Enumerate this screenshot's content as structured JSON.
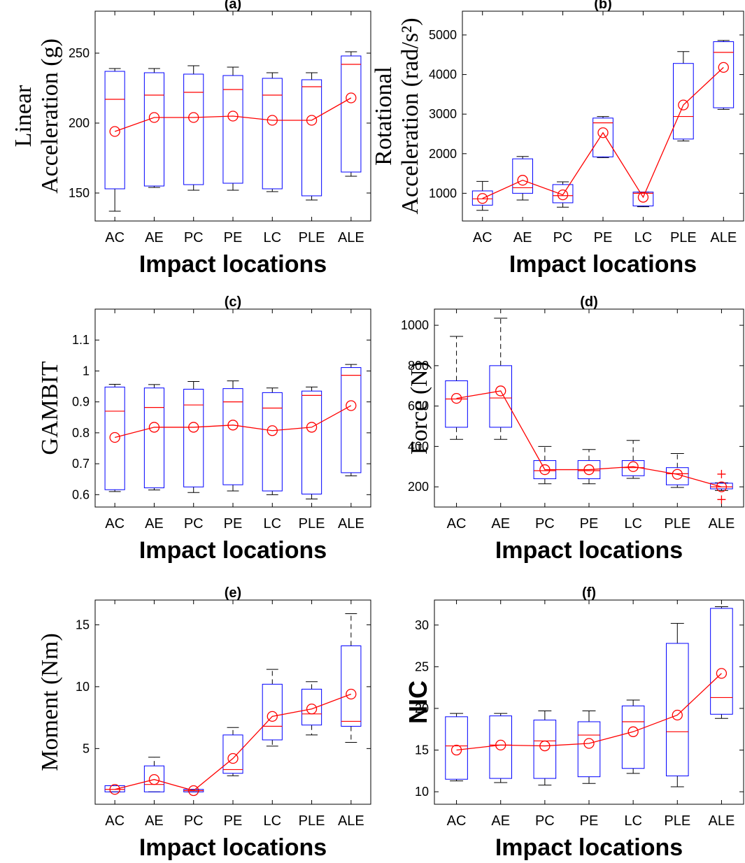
{
  "colors": {
    "box": "#0000ff",
    "median": "#ff0000",
    "mean": "#ff0000",
    "whisker": "#000000",
    "axis": "#000000",
    "outlier": "#ff0000"
  },
  "chart_data": [
    {
      "type": "box",
      "title": "(a)",
      "ylabel_lines": [
        "Linear",
        "Acceleration (g)"
      ],
      "ylabel_style": "serif",
      "xlabel": "Impact locations",
      "categories": [
        "AC",
        "AE",
        "PC",
        "PE",
        "LC",
        "PLE",
        "ALE"
      ],
      "ylim": [
        130,
        280
      ],
      "yticks": [
        150,
        200,
        250
      ],
      "whisker_low": [
        137,
        154,
        152,
        152,
        151,
        145,
        162
      ],
      "q1": [
        153,
        155,
        156,
        157,
        153,
        148,
        165
      ],
      "median": [
        217,
        220,
        222,
        224,
        220,
        226,
        242
      ],
      "q3": [
        237,
        236,
        235,
        234,
        232,
        231,
        248
      ],
      "whisker_high": [
        239,
        239,
        241,
        240,
        236,
        236,
        251
      ],
      "dashed_whiskers": false,
      "outliers": [],
      "mean": [
        194,
        204,
        204,
        205,
        202,
        202,
        218
      ]
    },
    {
      "type": "box",
      "title": "(b)",
      "ylabel_lines": [
        "Rotational",
        "Acceleration (rad/s²)"
      ],
      "ylabel_style": "serif",
      "xlabel": "Impact locations",
      "categories": [
        "AC",
        "AE",
        "PC",
        "PE",
        "LC",
        "PLE",
        "ALE"
      ],
      "ylim": [
        300,
        5600
      ],
      "yticks": [
        1000,
        2000,
        3000,
        4000,
        5000
      ],
      "whisker_low": [
        570,
        830,
        650,
        1900,
        660,
        2320,
        3120
      ],
      "q1": [
        700,
        1000,
        760,
        1920,
        680,
        2370,
        3160
      ],
      "median": [
        860,
        1140,
        940,
        2780,
        1000,
        2940,
        4560
      ],
      "q3": [
        1060,
        1870,
        1220,
        2900,
        1030,
        4280,
        4830
      ],
      "whisker_high": [
        1300,
        1930,
        1290,
        2940,
        1030,
        4580,
        4860
      ],
      "dashed_whiskers": false,
      "outliers": [],
      "mean": [
        870,
        1330,
        960,
        2530,
        900,
        3230,
        4180
      ]
    },
    {
      "type": "box",
      "title": "(c)",
      "ylabel_lines": [
        "GAMBIT"
      ],
      "ylabel_style": "serif",
      "xlabel": "Impact locations",
      "categories": [
        "AC",
        "AE",
        "PC",
        "PE",
        "LC",
        "PLE",
        "ALE"
      ],
      "ylim": [
        0.56,
        1.2
      ],
      "yticks": [
        0.6,
        0.7,
        0.8,
        0.9,
        1,
        1.1
      ],
      "whisker_low": [
        0.61,
        0.615,
        0.607,
        0.612,
        0.6,
        0.586,
        0.661
      ],
      "q1": [
        0.616,
        0.622,
        0.625,
        0.632,
        0.612,
        0.602,
        0.671
      ],
      "median": [
        0.87,
        0.882,
        0.89,
        0.9,
        0.88,
        0.921,
        0.986
      ],
      "q3": [
        0.948,
        0.945,
        0.941,
        0.943,
        0.93,
        0.935,
        1.011
      ],
      "whisker_high": [
        0.957,
        0.956,
        0.966,
        0.968,
        0.945,
        0.948,
        1.021
      ],
      "dashed_whiskers": false,
      "outliers": [],
      "mean": [
        0.785,
        0.818,
        0.818,
        0.825,
        0.807,
        0.818,
        0.888
      ]
    },
    {
      "type": "box",
      "title": "(d)",
      "ylabel_lines": [
        "Force (N)"
      ],
      "ylabel_style": "serif",
      "xlabel": "Impact locations",
      "categories": [
        "AC",
        "AE",
        "PC",
        "PE",
        "LC",
        "PLE",
        "ALE"
      ],
      "ylim": [
        100,
        1080
      ],
      "yticks": [
        200,
        400,
        600,
        800,
        1000
      ],
      "whisker_low": [
        435,
        435,
        215,
        215,
        242,
        197,
        182
      ],
      "q1": [
        495,
        495,
        240,
        240,
        255,
        210,
        190
      ],
      "median": [
        635,
        640,
        280,
        280,
        295,
        265,
        200
      ],
      "q3": [
        725,
        800,
        330,
        330,
        330,
        295,
        218
      ],
      "whisker_high": [
        945,
        1035,
        400,
        385,
        430,
        365,
        220
      ],
      "dashed_whiskers": true,
      "outliers": [
        {
          "category": "ALE",
          "value": 263
        },
        {
          "category": "ALE",
          "value": 137
        }
      ],
      "mean": [
        638,
        675,
        285,
        285,
        300,
        262,
        200
      ]
    },
    {
      "type": "box",
      "title": "(e)",
      "ylabel_lines": [
        "Moment (Nm)"
      ],
      "ylabel_style": "serif",
      "xlabel": "Impact locations",
      "categories": [
        "AC",
        "AE",
        "PC",
        "PE",
        "LC",
        "PLE",
        "ALE"
      ],
      "ylim": [
        0.5,
        17
      ],
      "yticks": [
        5,
        10,
        15
      ],
      "whisker_low": [
        1.5,
        1.5,
        1.5,
        2.8,
        5.2,
        6.1,
        5.5
      ],
      "q1": [
        1.5,
        1.5,
        1.5,
        3.0,
        5.7,
        6.9,
        6.8
      ],
      "median": [
        1.7,
        2.1,
        1.6,
        3.3,
        6.8,
        7.8,
        7.2
      ],
      "q3": [
        2.0,
        3.6,
        1.7,
        6.1,
        10.2,
        9.8,
        13.3
      ],
      "whisker_high": [
        2.0,
        4.3,
        1.7,
        6.7,
        11.4,
        10.4,
        15.9
      ],
      "dashed_whiskers": true,
      "outliers": [],
      "mean": [
        1.7,
        2.5,
        1.6,
        4.2,
        7.6,
        8.2,
        9.4
      ]
    },
    {
      "type": "box",
      "title": "(f)",
      "ylabel_lines": [
        "NIC"
      ],
      "ylabel_style": "bold",
      "xlabel": "Impact locations",
      "categories": [
        "AC",
        "AE",
        "PC",
        "PE",
        "LC",
        "PLE",
        "ALE"
      ],
      "ylim": [
        8.5,
        33
      ],
      "yticks": [
        10,
        15,
        20,
        25,
        30
      ],
      "whisker_low": [
        11.3,
        11.1,
        10.8,
        11.0,
        12.2,
        10.6,
        18.8
      ],
      "q1": [
        11.5,
        11.6,
        11.6,
        11.8,
        12.8,
        11.9,
        19.3
      ],
      "median": [
        15.5,
        15.6,
        16.1,
        16.8,
        18.4,
        17.2,
        21.3
      ],
      "q3": [
        19.0,
        19.1,
        18.6,
        18.4,
        20.3,
        27.8,
        32.0
      ],
      "whisker_high": [
        19.4,
        19.4,
        19.7,
        19.7,
        21.0,
        30.2,
        32.2
      ],
      "dashed_whiskers": false,
      "outliers": [],
      "mean": [
        15.0,
        15.6,
        15.5,
        15.8,
        17.2,
        19.2,
        24.2
      ]
    }
  ]
}
